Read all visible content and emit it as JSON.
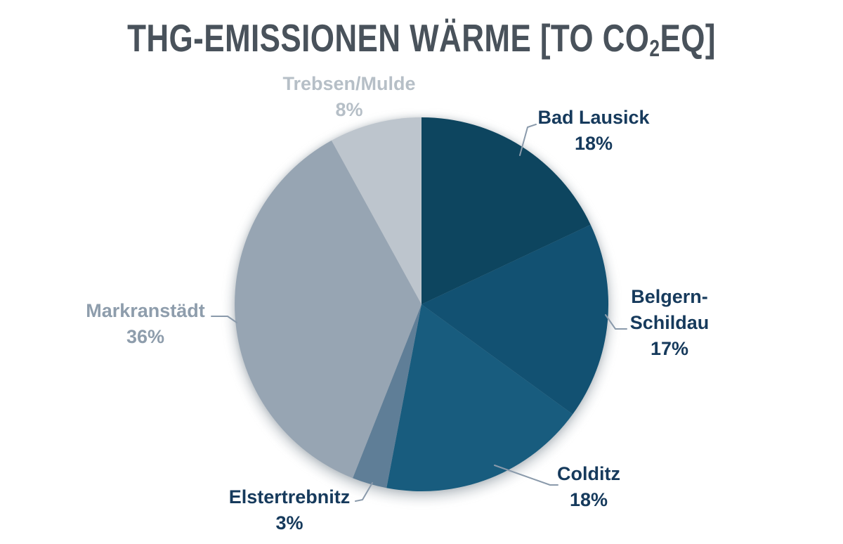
{
  "title": {
    "pre": "THG-EMISSIONEN WÄRME [TO CO",
    "sub": "2",
    "post": "EQ]"
  },
  "chart_data": {
    "type": "pie",
    "title": "THG-EMISSIONEN WÄRME [TO CO2EQ]",
    "unit": "to CO2eq",
    "start_angle_deg": 0,
    "direction": "clockwise",
    "legend": "callout-labels",
    "background": "#ffffff",
    "title_color": "#49525b",
    "leader_line_color": "#8a9aab",
    "slices": [
      {
        "label": "Bad Lausick",
        "value": 18,
        "display": "18%",
        "color": "#0d455f",
        "text_color": "#163a5c"
      },
      {
        "label": "Belgern-Schildau",
        "value": 17,
        "display": "17%",
        "color": "#125172",
        "text_color": "#163a5c"
      },
      {
        "label": "Colditz",
        "value": 18,
        "display": "18%",
        "color": "#185c7e",
        "text_color": "#163a5c"
      },
      {
        "label": "Elstertrebnitz",
        "value": 3,
        "display": "3%",
        "color": "#5f7e97",
        "text_color": "#163a5c"
      },
      {
        "label": "Markranstädt",
        "value": 36,
        "display": "36%",
        "color": "#97a5b3",
        "text_color": "#8e9dac"
      },
      {
        "label": "Trebsen/Mulde",
        "value": 8,
        "display": "8%",
        "color": "#bdc5cd",
        "text_color": "#b6bfc7"
      }
    ]
  }
}
